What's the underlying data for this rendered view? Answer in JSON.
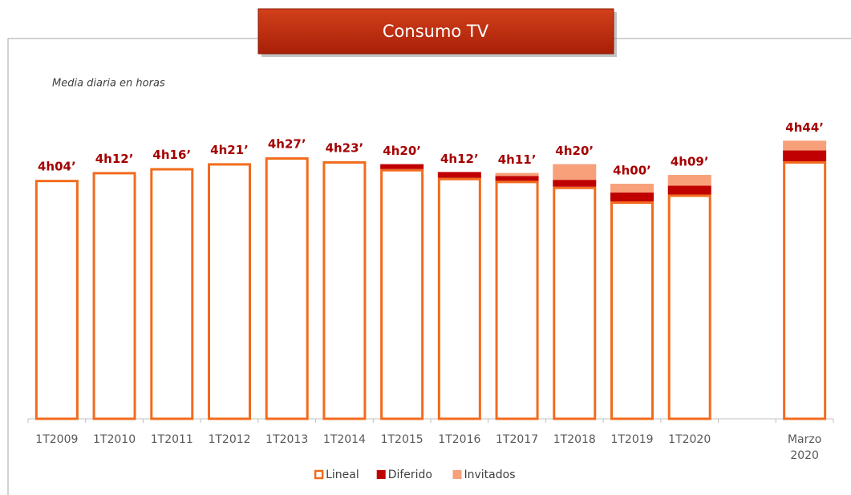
{
  "chart_data": {
    "type": "stacked_bar",
    "title": "Consumo TV",
    "subtitle": "Media diaria en horas",
    "categories": [
      "1T2009",
      "1T2010",
      "1T2011",
      "1T2012",
      "1T2013",
      "1T2014",
      "1T2015",
      "1T2016",
      "1T2017",
      "1T2018",
      "1T2019",
      "1T2020",
      null,
      [
        "Marzo",
        "2020"
      ]
    ],
    "series": [
      {
        "name": "Lineal",
        "color": "#f26b1d",
        "style": "outline",
        "values": [
          244,
          252,
          256,
          261,
          267,
          263,
          255,
          246,
          243,
          237,
          222,
          229,
          null,
          263
        ]
      },
      {
        "name": "Diferido",
        "color": "#c00000",
        "values": [
          0,
          0,
          0,
          0,
          0,
          0,
          5,
          6,
          5,
          7,
          9,
          9,
          null,
          11
        ]
      },
      {
        "name": "Invitados",
        "color": "#f7a07a",
        "values": [
          0,
          0,
          0,
          0,
          0,
          0,
          0,
          0,
          3,
          16,
          9,
          11,
          null,
          10
        ]
      }
    ],
    "totals": [
      244,
      252,
      256,
      261,
      267,
      263,
      260,
      252,
      251,
      260,
      240,
      249,
      null,
      284
    ],
    "total_labels": [
      "4h04’",
      "4h12’",
      "4h16’",
      "4h21’",
      "4h27’",
      "4h23’",
      "4h20’",
      "4h12’",
      "4h11’",
      "4h20’",
      "4h00’",
      "4h09’",
      null,
      "4h44’"
    ],
    "ylim": [
      0,
      290
    ],
    "legend": "bottom"
  }
}
